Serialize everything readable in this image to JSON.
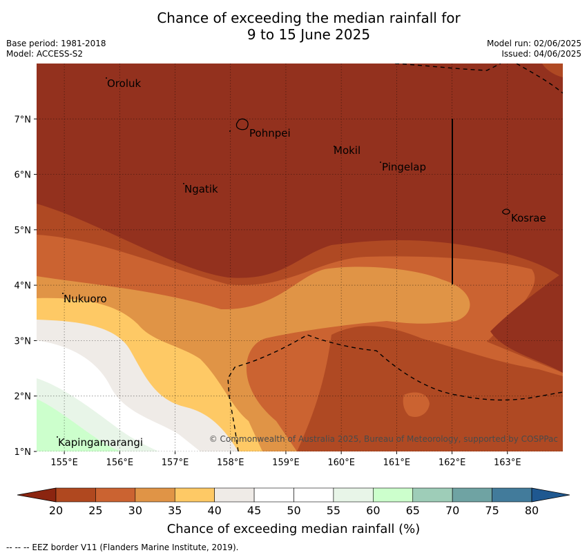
{
  "header": {
    "title_line1": "Chance of exceeding the median rainfall for",
    "title_line2": "9 to 15 June 2025",
    "base_period": "Base period: 1981-2018",
    "model": "Model: ACCESS-S2",
    "model_run": "Model run: 02/06/2025",
    "issued": "Issued: 04/06/2025"
  },
  "map": {
    "lon_ticks": [
      "155°E",
      "156°E",
      "157°E",
      "158°E",
      "159°E",
      "160°E",
      "161°E",
      "162°E",
      "163°E"
    ],
    "lat_ticks": [
      "7°N",
      "6°N",
      "5°N",
      "4°N",
      "3°N",
      "2°N",
      "1°N"
    ],
    "places": [
      "Oroluk",
      "Pohnpei",
      "Mokil",
      "Pingelap",
      "Ngatik",
      "Kosrae",
      "Nukuoro",
      "Kapingamarangi"
    ],
    "copyright": "© Commonwealth of Australia 2025, Bureau of Meteorology, supported by COSPPac"
  },
  "colorbar": {
    "ticks": [
      "20",
      "25",
      "30",
      "35",
      "40",
      "45",
      "50",
      "55",
      "60",
      "65",
      "70",
      "75",
      "80"
    ],
    "colors": [
      "#8b2510",
      "#b0481f",
      "#cb6331",
      "#e09446",
      "#fec965",
      "#efebe7",
      "#ffffff",
      "#ffffff",
      "#e8f5e8",
      "#ccffcc",
      "#9ecdb8",
      "#6fa3a3",
      "#427b9b",
      "#1f5890"
    ],
    "title": "Chance of exceeding median rainfall (%)"
  },
  "footer": {
    "eez_note": "--  --  -- EEZ border V11 (Flanders Marine Institute, 2019)."
  }
}
